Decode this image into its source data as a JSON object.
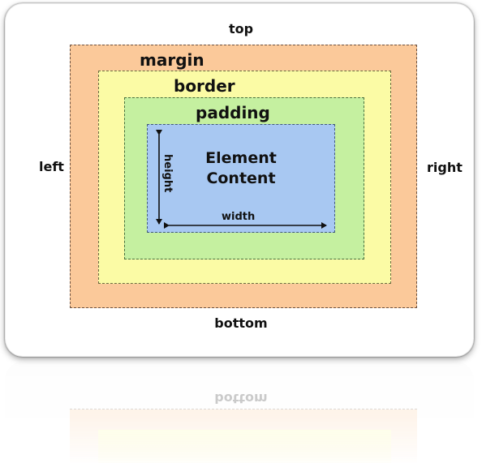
{
  "diagram": {
    "sides": {
      "top": "top",
      "bottom": "bottom",
      "left": "left",
      "right": "right"
    },
    "layers": {
      "margin": "margin",
      "border": "border",
      "padding": "padding",
      "content_line1": "Element",
      "content_line2": "Content"
    },
    "dimensions": {
      "height": "height",
      "width": "width"
    },
    "colors": {
      "margin": "#fbc99a",
      "border": "#fbfba5",
      "padding": "#c5f0a0",
      "content": "#a8c8f2"
    }
  }
}
